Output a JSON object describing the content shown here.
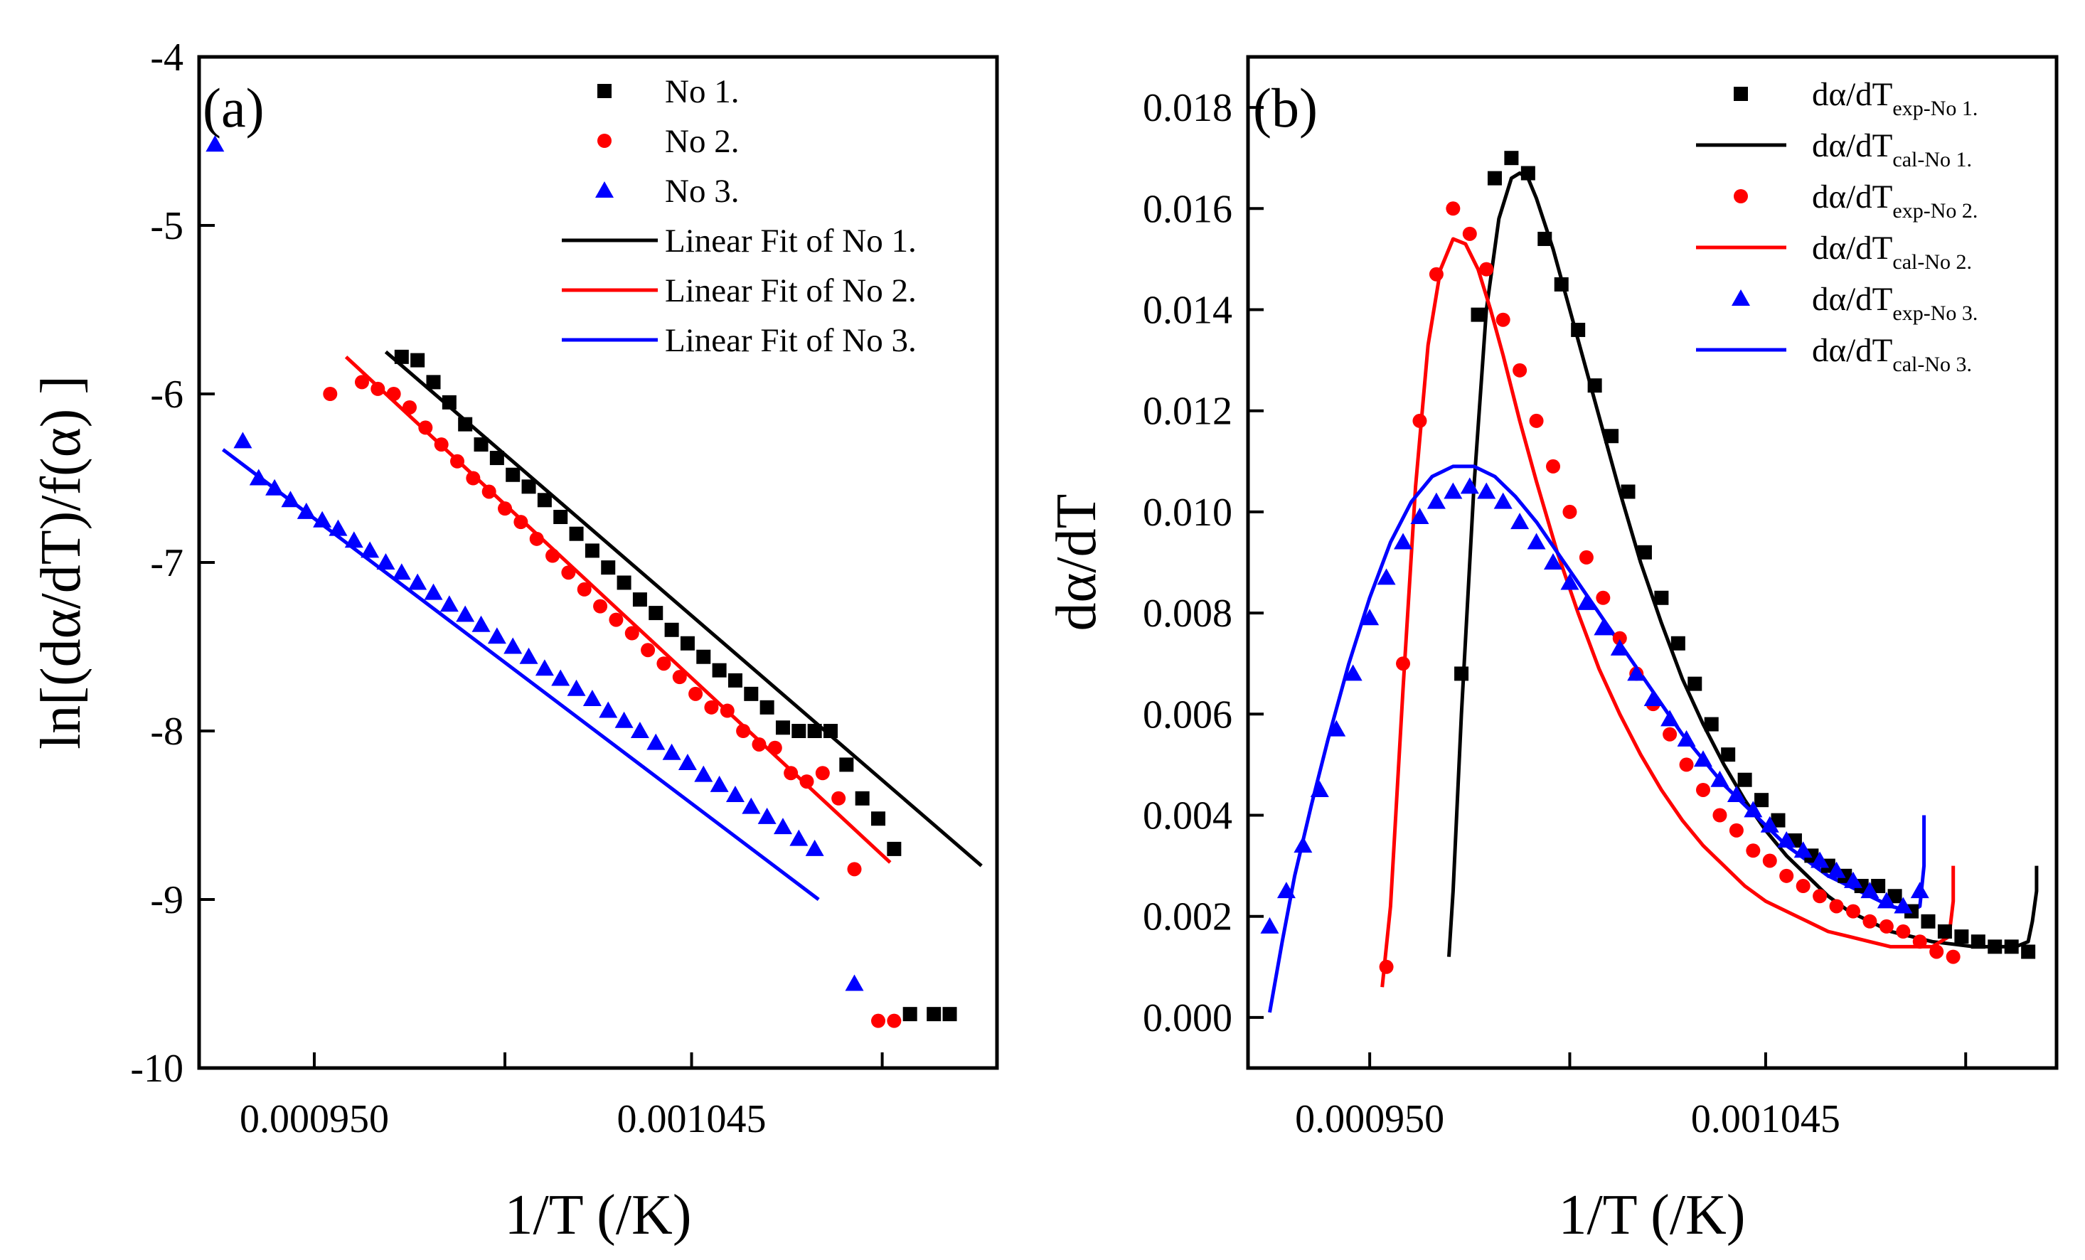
{
  "chart_data": [
    {
      "panel_label": "(a)",
      "type": "scatter",
      "xlabel": "1/T (/K)",
      "ylabel": "ln[(dα/dT)/f(α) ]",
      "xlim": [
        0.000921,
        0.0011219
      ],
      "ylim": [
        -10,
        -4
      ],
      "xticks": [
        0.00095,
        0.000998,
        0.001045,
        0.001093
      ],
      "xtick_labels": [
        "0.000950",
        "",
        "0.001045",
        ""
      ],
      "yticks": [
        -4,
        -5,
        -6,
        -7,
        -8,
        -9,
        -10
      ],
      "ytick_labels": [
        "-4",
        "-5",
        "-6",
        "-7",
        "-8",
        "-9",
        "-10"
      ],
      "legend_position": "top-right",
      "series": [
        {
          "name": "No 1.",
          "kind": "points",
          "marker": "square",
          "color": "#000000",
          "x": [
            0.000972,
            0.000976,
            0.00098,
            0.000984,
            0.000988,
            0.000992,
            0.000996,
            0.001,
            0.001004,
            0.001008,
            0.001012,
            0.001016,
            0.00102,
            0.001024,
            0.001028,
            0.001032,
            0.001036,
            0.00104,
            0.001044,
            0.001048,
            0.001052,
            0.001056,
            0.00106,
            0.001064,
            0.001068,
            0.001072,
            0.001076,
            0.00108,
            0.001084,
            0.001088,
            0.001092,
            0.001096,
            0.0011,
            0.001106,
            0.00111
          ],
          "y": [
            -5.78,
            -5.8,
            -5.93,
            -6.05,
            -6.18,
            -6.3,
            -6.38,
            -6.48,
            -6.55,
            -6.63,
            -6.73,
            -6.83,
            -6.93,
            -7.03,
            -7.12,
            -7.22,
            -7.3,
            -7.4,
            -7.48,
            -7.56,
            -7.64,
            -7.7,
            -7.78,
            -7.86,
            -7.98,
            -8.0,
            -8.0,
            -8.0,
            -8.2,
            -8.4,
            -8.52,
            -8.7,
            -9.68,
            -9.68,
            -9.68
          ]
        },
        {
          "name": "No 2.",
          "kind": "points",
          "marker": "circle",
          "color": "#ff0000",
          "x": [
            0.000954,
            0.000962,
            0.000966,
            0.00097,
            0.000974,
            0.000978,
            0.000982,
            0.000986,
            0.00099,
            0.000994,
            0.000998,
            0.001002,
            0.001006,
            0.00101,
            0.001014,
            0.001018,
            0.001022,
            0.001026,
            0.00103,
            0.001034,
            0.001038,
            0.001042,
            0.001046,
            0.00105,
            0.001054,
            0.001058,
            0.001062,
            0.001066,
            0.00107,
            0.001074,
            0.001078,
            0.001082,
            0.001086,
            0.001092,
            0.001096
          ],
          "y": [
            -6.0,
            -5.93,
            -5.97,
            -6.0,
            -6.08,
            -6.2,
            -6.3,
            -6.4,
            -6.5,
            -6.58,
            -6.68,
            -6.76,
            -6.86,
            -6.96,
            -7.06,
            -7.16,
            -7.26,
            -7.34,
            -7.42,
            -7.52,
            -7.6,
            -7.68,
            -7.78,
            -7.86,
            -7.88,
            -8.0,
            -8.08,
            -8.1,
            -8.25,
            -8.3,
            -8.25,
            -8.4,
            -8.82,
            -9.72,
            -9.72
          ]
        },
        {
          "name": "No 3.",
          "kind": "points",
          "marker": "triangle",
          "color": "#0000ff",
          "x": [
            0.000925,
            0.000932,
            0.000936,
            0.00094,
            0.000944,
            0.000948,
            0.000952,
            0.000956,
            0.00096,
            0.000964,
            0.000968,
            0.000972,
            0.000976,
            0.00098,
            0.000984,
            0.000988,
            0.000992,
            0.000996,
            0.001,
            0.001004,
            0.001008,
            0.001012,
            0.001016,
            0.00102,
            0.001024,
            0.001028,
            0.001032,
            0.001036,
            0.00104,
            0.001044,
            0.001048,
            0.001052,
            0.001056,
            0.00106,
            0.001064,
            0.001068,
            0.001072,
            0.001076,
            0.001086
          ],
          "y": [
            -4.52,
            -6.28,
            -6.5,
            -6.56,
            -6.63,
            -6.7,
            -6.75,
            -6.8,
            -6.87,
            -6.93,
            -7.0,
            -7.06,
            -7.12,
            -7.18,
            -7.25,
            -7.31,
            -7.37,
            -7.44,
            -7.5,
            -7.56,
            -7.63,
            -7.69,
            -7.75,
            -7.81,
            -7.88,
            -7.94,
            -8.0,
            -8.07,
            -8.13,
            -8.19,
            -8.26,
            -8.32,
            -8.38,
            -8.45,
            -8.51,
            -8.57,
            -8.64,
            -8.7,
            -9.5
          ]
        },
        {
          "name": "Linear Fit of No 1.",
          "kind": "line",
          "color": "#000000",
          "x": [
            0.000968,
            0.001118
          ],
          "y": [
            -5.75,
            -8.8
          ]
        },
        {
          "name": "Linear Fit of No 2.",
          "kind": "line",
          "color": "#ff0000",
          "x": [
            0.000958,
            0.001095
          ],
          "y": [
            -5.78,
            -8.78
          ]
        },
        {
          "name": "Linear Fit of No 3.",
          "kind": "line",
          "color": "#0000ff",
          "x": [
            0.000927,
            0.001077
          ],
          "y": [
            -6.33,
            -9.0
          ]
        }
      ]
    },
    {
      "panel_label": "(b)",
      "type": "scatter",
      "xlabel": "1/T (/K)",
      "ylabel": "dα/dT",
      "xlim": [
        0.0009208,
        0.0011148
      ],
      "ylim": [
        -0.001,
        0.019
      ],
      "xticks": [
        0.00095,
        0.000998,
        0.001045,
        0.001093
      ],
      "xtick_labels": [
        "0.000950",
        "",
        "0.001045",
        ""
      ],
      "yticks": [
        0.0,
        0.002,
        0.004,
        0.006,
        0.008,
        0.01,
        0.012,
        0.014,
        0.016,
        0.018
      ],
      "ytick_labels": [
        "0.000",
        "0.002",
        "0.004",
        "0.006",
        "0.008",
        "0.010",
        "0.012",
        "0.014",
        "0.016",
        "0.018"
      ],
      "legend_position": "top-right",
      "series": [
        {
          "name": "dα/dT",
          "name_sub": "exp-No 1.",
          "kind": "points",
          "marker": "square",
          "color": "#000000",
          "x": [
            0.000972,
            0.000976,
            0.00098,
            0.000984,
            0.000988,
            0.000992,
            0.000996,
            0.001,
            0.001004,
            0.001008,
            0.001012,
            0.001016,
            0.00102,
            0.001024,
            0.001028,
            0.001032,
            0.001036,
            0.00104,
            0.001044,
            0.001048,
            0.001052,
            0.001056,
            0.00106,
            0.001064,
            0.001068,
            0.001072,
            0.001076,
            0.00108,
            0.001084,
            0.001088,
            0.001092,
            0.001096,
            0.0011,
            0.001104,
            0.001108
          ],
          "y": [
            0.0068,
            0.0139,
            0.0166,
            0.017,
            0.0167,
            0.0154,
            0.0145,
            0.0136,
            0.0125,
            0.0115,
            0.0104,
            0.0092,
            0.0083,
            0.0074,
            0.0066,
            0.0058,
            0.0052,
            0.0047,
            0.0043,
            0.0039,
            0.0035,
            0.0032,
            0.003,
            0.0028,
            0.0026,
            0.0026,
            0.0024,
            0.0021,
            0.0019,
            0.0017,
            0.0016,
            0.0015,
            0.0014,
            0.0014,
            0.0013
          ]
        },
        {
          "name": "dα/dT",
          "name_sub": "cal-No 1.",
          "kind": "line",
          "color": "#000000",
          "x": [
            0.000969,
            0.00097,
            0.000972,
            0.000975,
            0.000978,
            0.000981,
            0.000984,
            0.000986,
            0.000988,
            0.00099,
            0.000994,
            0.000998,
            0.001002,
            0.001006,
            0.00101,
            0.001015,
            0.00102,
            0.001025,
            0.00103,
            0.001035,
            0.00104,
            0.001045,
            0.00105,
            0.001055,
            0.00106,
            0.001065,
            0.00107,
            0.001075,
            0.00108,
            0.001085,
            0.00109,
            0.001095,
            0.0011,
            0.001105,
            0.001108,
            0.001109,
            0.00111,
            0.00111
          ],
          "y": [
            0.0012,
            0.0025,
            0.006,
            0.0105,
            0.014,
            0.0158,
            0.0166,
            0.0167,
            0.0166,
            0.0162,
            0.0152,
            0.014,
            0.0128,
            0.0116,
            0.0104,
            0.009,
            0.0078,
            0.0067,
            0.0058,
            0.005,
            0.0043,
            0.0037,
            0.0032,
            0.0028,
            0.0024,
            0.0021,
            0.0019,
            0.0017,
            0.0016,
            0.0015,
            0.00145,
            0.0014,
            0.0014,
            0.0014,
            0.0015,
            0.0019,
            0.0025,
            0.003
          ]
        },
        {
          "name": "dα/dT",
          "name_sub": "exp-No 2.",
          "kind": "points",
          "marker": "circle",
          "color": "#ff0000",
          "x": [
            0.000954,
            0.000958,
            0.000962,
            0.000966,
            0.00097,
            0.000974,
            0.000978,
            0.000982,
            0.000986,
            0.00099,
            0.000994,
            0.000998,
            0.001002,
            0.001006,
            0.00101,
            0.001014,
            0.001018,
            0.001022,
            0.001026,
            0.00103,
            0.001034,
            0.001038,
            0.001042,
            0.001046,
            0.00105,
            0.001054,
            0.001058,
            0.001062,
            0.001066,
            0.00107,
            0.001074,
            0.001078,
            0.001082,
            0.001086,
            0.00109
          ],
          "y": [
            0.001,
            0.007,
            0.0118,
            0.0147,
            0.016,
            0.0155,
            0.0148,
            0.0138,
            0.0128,
            0.0118,
            0.0109,
            0.01,
            0.0091,
            0.0083,
            0.0075,
            0.0068,
            0.0062,
            0.0056,
            0.005,
            0.0045,
            0.004,
            0.0037,
            0.0033,
            0.0031,
            0.0028,
            0.0026,
            0.0024,
            0.0022,
            0.0021,
            0.0019,
            0.0018,
            0.0017,
            0.0015,
            0.0013,
            0.0012
          ]
        },
        {
          "name": "dα/dT",
          "name_sub": "cal-No 2.",
          "kind": "line",
          "color": "#ff0000",
          "x": [
            0.000953,
            0.000955,
            0.000958,
            0.000961,
            0.000964,
            0.000967,
            0.00097,
            0.000973,
            0.000976,
            0.000979,
            0.000982,
            0.000986,
            0.00099,
            0.000995,
            0.001,
            0.001005,
            0.00101,
            0.001015,
            0.00102,
            0.001025,
            0.00103,
            0.001035,
            0.00104,
            0.001045,
            0.00105,
            0.001055,
            0.00106,
            0.001065,
            0.00107,
            0.001075,
            0.00108,
            0.001085,
            0.001089,
            0.00109,
            0.00109
          ],
          "y": [
            0.0006,
            0.0022,
            0.0065,
            0.0105,
            0.0133,
            0.0148,
            0.0154,
            0.0153,
            0.0148,
            0.014,
            0.0131,
            0.0118,
            0.0106,
            0.0092,
            0.008,
            0.0069,
            0.006,
            0.0052,
            0.0045,
            0.0039,
            0.0034,
            0.003,
            0.0026,
            0.0023,
            0.0021,
            0.0019,
            0.0017,
            0.0016,
            0.0015,
            0.0014,
            0.0014,
            0.0014,
            0.0016,
            0.0023,
            0.003
          ]
        },
        {
          "name": "dα/dT",
          "name_sub": "exp-No 3.",
          "kind": "points",
          "marker": "triangle",
          "color": "#0000ff",
          "x": [
            0.000926,
            0.00093,
            0.000934,
            0.000938,
            0.000942,
            0.000946,
            0.00095,
            0.000954,
            0.000958,
            0.000962,
            0.000966,
            0.00097,
            0.000974,
            0.000978,
            0.000982,
            0.000986,
            0.00099,
            0.000994,
            0.000998,
            0.001002,
            0.001006,
            0.00101,
            0.001014,
            0.001018,
            0.001022,
            0.001026,
            0.00103,
            0.001034,
            0.001038,
            0.001042,
            0.001046,
            0.00105,
            0.001054,
            0.001058,
            0.001062,
            0.001066,
            0.00107,
            0.001074,
            0.001078,
            0.001082
          ],
          "y": [
            0.0018,
            0.0025,
            0.0034,
            0.0045,
            0.0057,
            0.0068,
            0.0079,
            0.0087,
            0.0094,
            0.0099,
            0.0102,
            0.0104,
            0.0105,
            0.0104,
            0.0102,
            0.0098,
            0.0094,
            0.009,
            0.0086,
            0.0082,
            0.0077,
            0.0073,
            0.0068,
            0.0063,
            0.0059,
            0.0055,
            0.0051,
            0.0047,
            0.0044,
            0.0041,
            0.0038,
            0.0035,
            0.0033,
            0.0031,
            0.0029,
            0.0027,
            0.0025,
            0.0023,
            0.0022,
            0.0025
          ]
        },
        {
          "name": "dα/dT",
          "name_sub": "cal-No 3.",
          "kind": "line",
          "color": "#0000ff",
          "x": [
            0.000926,
            0.000929,
            0.000932,
            0.000936,
            0.00094,
            0.000945,
            0.00095,
            0.000955,
            0.00096,
            0.000965,
            0.00097,
            0.000975,
            0.00098,
            0.000985,
            0.00099,
            0.000995,
            0.001,
            0.001005,
            0.00101,
            0.001015,
            0.00102,
            0.001025,
            0.00103,
            0.001035,
            0.00104,
            0.001045,
            0.00105,
            0.001055,
            0.00106,
            0.001065,
            0.00107,
            0.001075,
            0.00108,
            0.001082,
            0.001083,
            0.001083
          ],
          "y": [
            0.0001,
            0.0015,
            0.0028,
            0.0042,
            0.0055,
            0.007,
            0.0083,
            0.0094,
            0.0102,
            0.0107,
            0.0109,
            0.0109,
            0.0107,
            0.0103,
            0.0098,
            0.0092,
            0.0086,
            0.008,
            0.0074,
            0.0068,
            0.0062,
            0.0056,
            0.0051,
            0.0046,
            0.0042,
            0.0038,
            0.0034,
            0.0031,
            0.0028,
            0.0026,
            0.0024,
            0.0022,
            0.0021,
            0.0022,
            0.003,
            0.004
          ]
        }
      ]
    }
  ]
}
